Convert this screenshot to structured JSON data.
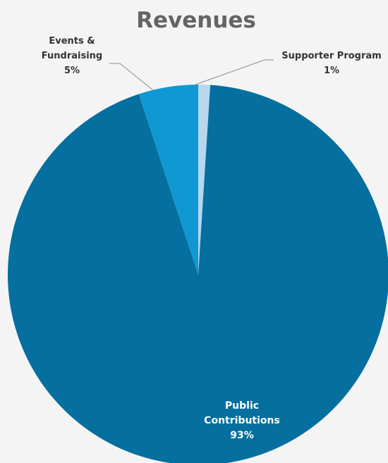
{
  "chart_data": {
    "type": "pie",
    "title": "Revenues",
    "slices": [
      {
        "name_lines": [
          "Supporter Program"
        ],
        "value": 1,
        "pct_label": "1%",
        "color": "#b6d7ee"
      },
      {
        "name_lines": [
          "Public",
          "Contributions"
        ],
        "value": 93,
        "pct_label": "93%",
        "color": "#056f9f"
      },
      {
        "name_lines": [
          "Events &",
          "Fundraising"
        ],
        "value": 5,
        "pct_label": "5%",
        "color": "#0f98d4"
      }
    ],
    "start_angle_deg": 0,
    "direction": "clockwise",
    "legend": "none",
    "label_placement": "data labels with leader lines for small slices, inside for large slice"
  }
}
